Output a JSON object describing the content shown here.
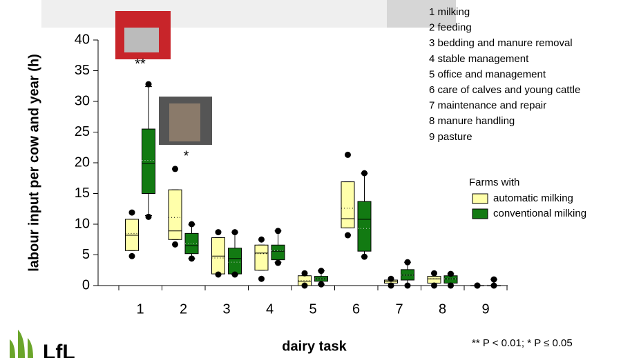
{
  "chart_data": {
    "type": "box",
    "y_label": "labour input per cow and year (h)",
    "x_label": "dairy task",
    "categories": [
      "1",
      "2",
      "3",
      "4",
      "5",
      "6",
      "7",
      "8",
      "9"
    ],
    "ylim": [
      0,
      40
    ],
    "yticks": [
      0,
      5,
      10,
      15,
      20,
      25,
      30,
      35,
      40
    ],
    "task_list": [
      "1 milking",
      "2 feeding",
      "3 bedding and manure removal",
      "4 stable management",
      "5 office and management",
      "6 care of calves and young cattle",
      "7 maintenance and repair",
      "8 manure handling",
      "9 pasture"
    ],
    "legend_title": "Farms with",
    "annotations": [
      {
        "category": 0,
        "text": "**",
        "y": 36
      },
      {
        "category": 1,
        "text": "*",
        "y": 21
      }
    ],
    "footnote": "** P < 0.01; * P ≤ 0.05",
    "logo_text": "LfL",
    "series": [
      {
        "name": "automatic milking",
        "color": "#ffffaa",
        "q1": [
          5.7,
          7.5,
          1.9,
          2.5,
          0,
          9.4,
          0.4,
          0.4,
          0
        ],
        "median": [
          8.2,
          8.9,
          4.8,
          5.3,
          0.7,
          10.9,
          0.7,
          1.1,
          0
        ],
        "q3": [
          10.8,
          15.6,
          7.8,
          6.6,
          1.6,
          16.9,
          0.9,
          1.5,
          0
        ],
        "mean": [
          8.5,
          11.1,
          4.5,
          5.2,
          0.8,
          12.6,
          0.7,
          1.1,
          0
        ],
        "whisker_low": [
          5.7,
          7.5,
          1.9,
          2.5,
          0,
          9.4,
          0.4,
          0.4,
          0
        ],
        "whisker_high": [
          10.8,
          15.6,
          7.8,
          6.6,
          1.6,
          16.9,
          0.9,
          1.5,
          0
        ],
        "outlier_low": [
          4.8,
          6.7,
          1.8,
          1.1,
          0,
          8.2,
          0,
          0,
          0
        ],
        "outlier_high": [
          11.9,
          19.0,
          8.7,
          7.5,
          2.0,
          21.3,
          1.1,
          2.0,
          0
        ]
      },
      {
        "name": "conventional milking",
        "color": "#127a12",
        "q1": [
          15.0,
          5.2,
          1.9,
          4.2,
          0.7,
          5.6,
          0.9,
          0.4,
          0
        ],
        "median": [
          19.9,
          6.5,
          4.4,
          5.6,
          1.1,
          10.8,
          1.7,
          1.1,
          0
        ],
        "q3": [
          25.5,
          8.5,
          6.1,
          6.6,
          1.5,
          13.7,
          2.6,
          1.6,
          0
        ],
        "mean": [
          20.4,
          6.8,
          3.8,
          5.7,
          1.1,
          9.3,
          1.7,
          1.1,
          0.1
        ],
        "whisker_low": [
          11.4,
          4.4,
          1.8,
          3.8,
          0.2,
          4.7,
          0,
          0,
          0
        ],
        "whisker_high": [
          32.4,
          9.9,
          8.7,
          8.9,
          2.4,
          18.3,
          3.8,
          1.9,
          1.0
        ],
        "outlier_low": [
          11.2,
          4.4,
          1.8,
          3.7,
          0.2,
          4.7,
          0,
          0,
          0
        ],
        "outlier_high": [
          32.8,
          10.0,
          8.7,
          8.9,
          2.4,
          18.3,
          3.8,
          1.9,
          1.0
        ]
      }
    ]
  }
}
